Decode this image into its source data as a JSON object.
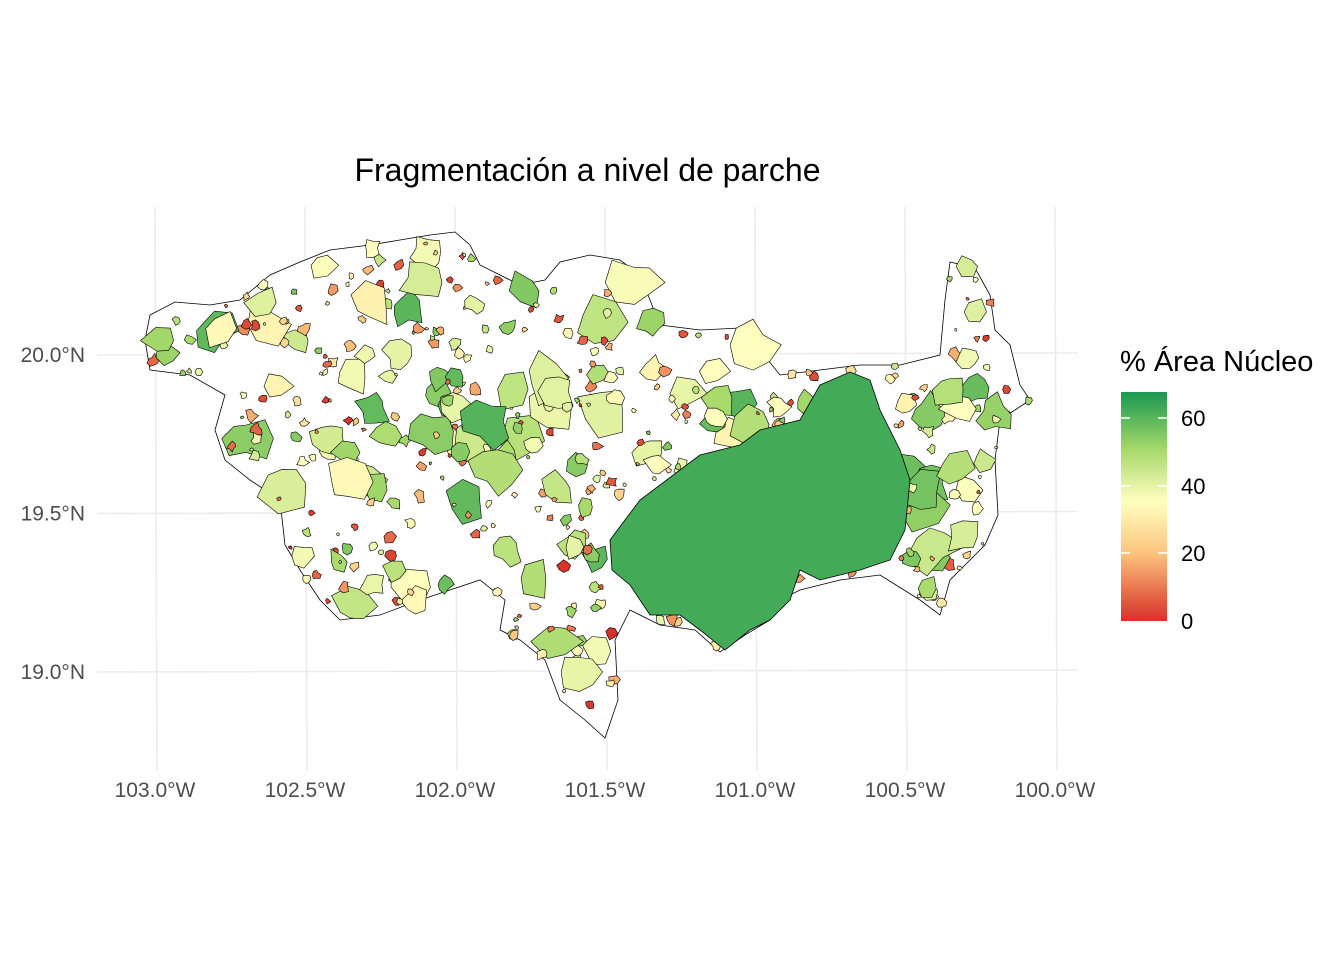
{
  "title": "Fragmentación a nivel de parche",
  "x_ticks": [
    "103.0°W",
    "102.5°W",
    "102.0°W",
    "101.5°W",
    "101.0°W",
    "100.5°W",
    "100.0°W"
  ],
  "x_tick_values": [
    -103.0,
    -102.5,
    -102.0,
    -101.5,
    -101.0,
    -100.5,
    -100.0
  ],
  "y_ticks": [
    "20.0°N",
    "19.5°N",
    "19.0°N"
  ],
  "y_tick_values": [
    20.0,
    19.5,
    19.0
  ],
  "legend": {
    "title": "% Área Núcleo",
    "labels": [
      "60",
      "40",
      "20",
      "0"
    ],
    "values": [
      60,
      40,
      20,
      0
    ],
    "range": [
      0,
      67
    ],
    "colors": {
      "0": "#d73027",
      "20": "#fdc57f",
      "35": "#ffffbf",
      "50": "#a6d96a",
      "67": "#1a9850"
    }
  }
}
